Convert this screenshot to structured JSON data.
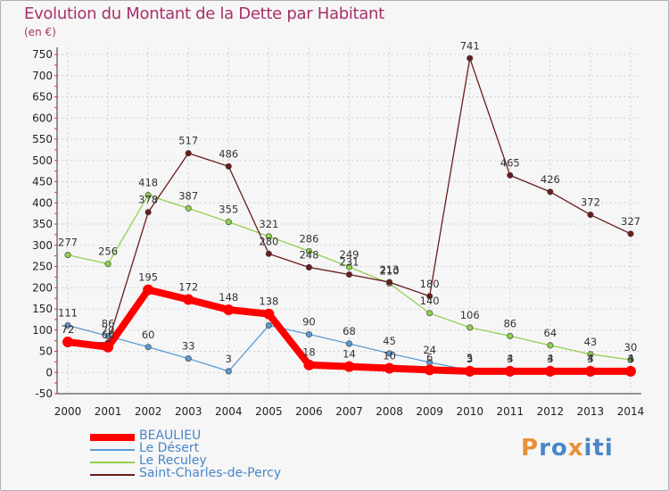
{
  "title": "Evolution du Montant de la Dette par Habitant",
  "subtitle": "(en €)",
  "logo_text": "Proxiti",
  "chart_data": {
    "type": "line",
    "x": [
      2000,
      2001,
      2002,
      2003,
      2004,
      2005,
      2006,
      2007,
      2008,
      2009,
      2010,
      2011,
      2012,
      2013,
      2014
    ],
    "ylim": [
      -50,
      750
    ],
    "yticks": [
      -50,
      0,
      50,
      100,
      150,
      200,
      250,
      300,
      350,
      400,
      450,
      500,
      550,
      600,
      650,
      700,
      750
    ],
    "grid": true,
    "legend_position": "bottom-left",
    "series": [
      {
        "name": "BEAULIEU",
        "color": "#ff0000",
        "values": [
          72,
          60,
          195,
          172,
          148,
          138,
          18,
          14,
          10,
          6,
          3,
          3,
          3,
          3,
          3
        ]
      },
      {
        "name": "Le Désert",
        "color": "#5b9bd5",
        "values": [
          111,
          86,
          60,
          33,
          3,
          111,
          90,
          68,
          45,
          24,
          5,
          4,
          4,
          4,
          4
        ]
      },
      {
        "name": "Le Reculey",
        "color": "#92d050",
        "values": [
          277,
          256,
          418,
          387,
          355,
          321,
          286,
          249,
          210,
          140,
          106,
          86,
          64,
          43,
          30
        ]
      },
      {
        "name": "Saint-Charles-de-Percy",
        "color": "#6b1c1c",
        "values": [
          72,
          70,
          378,
          517,
          486,
          280,
          248,
          231,
          213,
          180,
          741,
          465,
          426,
          372,
          327
        ]
      }
    ],
    "data_labels": [
      [
        "72",
        "60",
        "195",
        "172",
        "148",
        "138",
        "18",
        "14",
        "10",
        "6",
        "3",
        "3",
        "3",
        "3",
        "3"
      ],
      [
        "111",
        "86",
        "60",
        "33",
        "3",
        "",
        "90",
        "68",
        "45",
        "24",
        "5",
        "4",
        "4",
        "4",
        "4"
      ],
      [
        "277",
        "256",
        "418",
        "387",
        "355",
        "321",
        "286",
        "249",
        "210",
        "140",
        "106",
        "86",
        "64",
        "43",
        "30"
      ],
      [
        "72",
        "70",
        "378",
        "517",
        "486",
        "280",
        "248",
        "231",
        "213",
        "180",
        "741",
        "465",
        "426",
        "372",
        "327"
      ]
    ]
  }
}
